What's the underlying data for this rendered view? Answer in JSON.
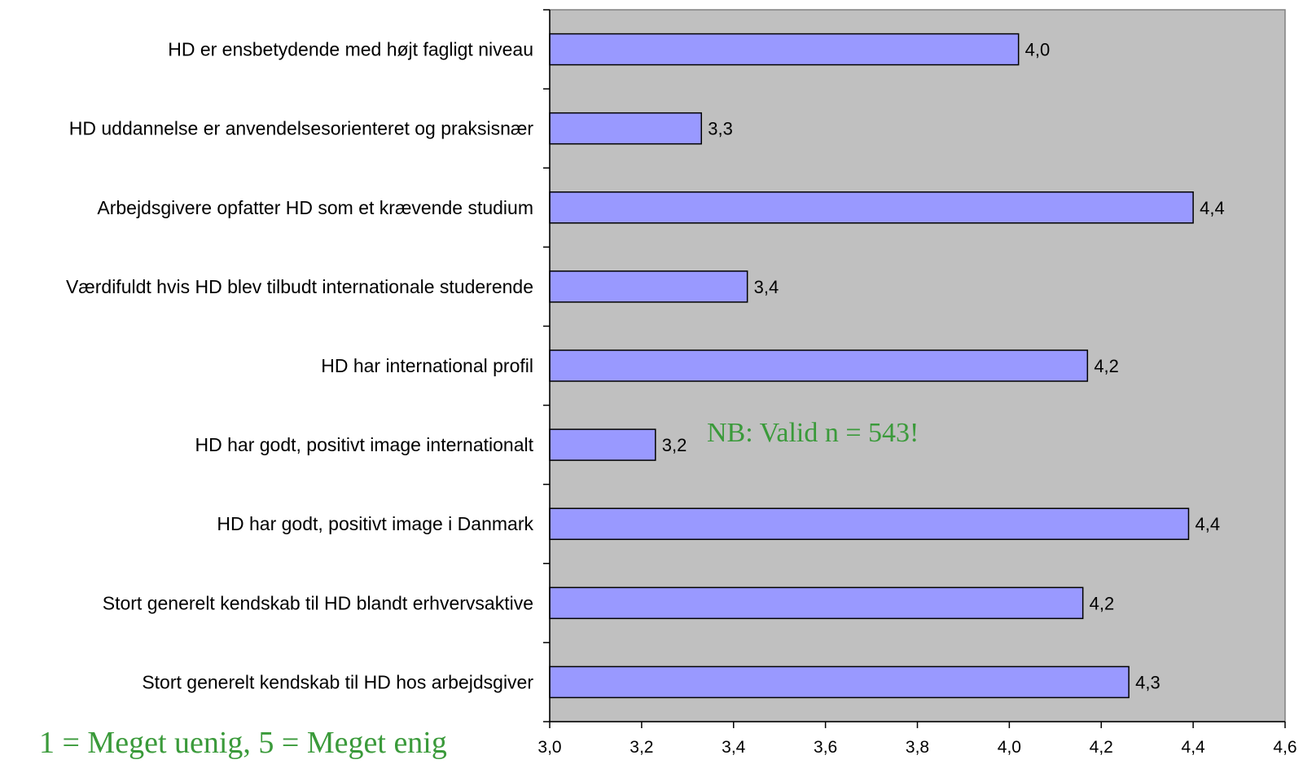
{
  "chart_data": {
    "type": "bar",
    "orientation": "horizontal",
    "categories": [
      "HD er ensbetydende med højt fagligt niveau",
      "HD uddannelse er anvendelsesorienteret og praksisnær",
      "Arbejdsgivere opfatter HD som et krævende studium",
      "Værdifuldt hvis HD blev tilbudt internationale studerende",
      "HD har international profil",
      "HD har godt, positivt image internationalt",
      "HD har godt, positivt image i Danmark",
      "Stort generelt kendskab til HD blandt erhvervsaktive",
      "Stort generelt kendskab til HD hos arbejdsgiver"
    ],
    "values": [
      4.02,
      3.33,
      4.4,
      3.43,
      4.17,
      3.23,
      4.39,
      4.16,
      4.26
    ],
    "data_labels": [
      "4,0",
      "3,3",
      "4,4",
      "3,4",
      "4,2",
      "3,2",
      "4,4",
      "4,2",
      "4,3"
    ],
    "xlim": [
      3.0,
      4.6
    ],
    "xticks": [
      "3,0",
      "3,2",
      "3,4",
      "3,6",
      "3,8",
      "4,0",
      "4,2",
      "4,4",
      "4,6"
    ],
    "grid": false,
    "colors": {
      "bar": "#9999ff",
      "plot_background": "#c0c0c0",
      "note": "#3a9a3a"
    },
    "annotations": {
      "sample_note": "NB: Valid n = 543!",
      "scale_note": "1 = Meget uenig, 5 = Meget enig"
    }
  }
}
